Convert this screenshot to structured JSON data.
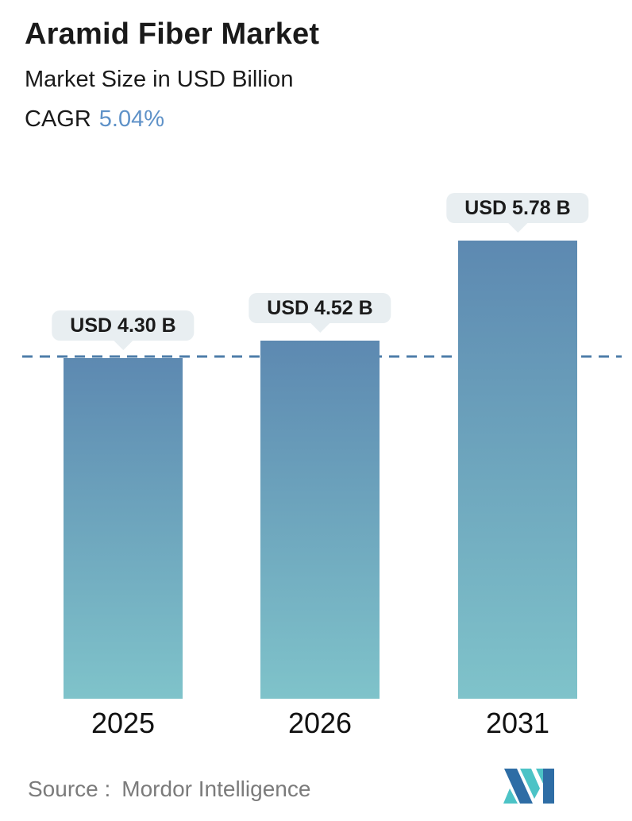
{
  "header": {
    "title": "Aramid Fiber Market",
    "subtitle": "Market Size in USD Billion",
    "cagr_label": "CAGR",
    "cagr_value": "5.04%"
  },
  "chart_data": {
    "type": "bar",
    "title": "Aramid Fiber Market",
    "subtitle": "Market Size in USD Billion",
    "unit": "USD Billion",
    "cagr_percent": 5.04,
    "categories": [
      "2025",
      "2026",
      "2031"
    ],
    "values": [
      4.3,
      4.52,
      5.78
    ],
    "value_labels": [
      "USD 4.30 B",
      "USD 4.52 B",
      "USD 5.78 B"
    ],
    "dashed_reference_value": 4.3,
    "ylim": [
      0,
      6
    ],
    "grid": "off",
    "legend": "none"
  },
  "colors": {
    "title_text": "#1a1a1a",
    "cagr_accent": "#5f92c8",
    "bar_top": "#5d89b1",
    "bar_bottom": "#7fc3ca",
    "dashed_line": "#4e7da9",
    "bubble_bg": "#e8eef1",
    "bubble_text": "#1b1b1b",
    "source_text": "#7b7b7b",
    "logo_blue": "#2e6da5",
    "logo_teal": "#4cc3c6"
  },
  "footer": {
    "source_label": "Source :",
    "source_value": "Mordor Intelligence",
    "logo_name": "mordor-intelligence-logo"
  }
}
